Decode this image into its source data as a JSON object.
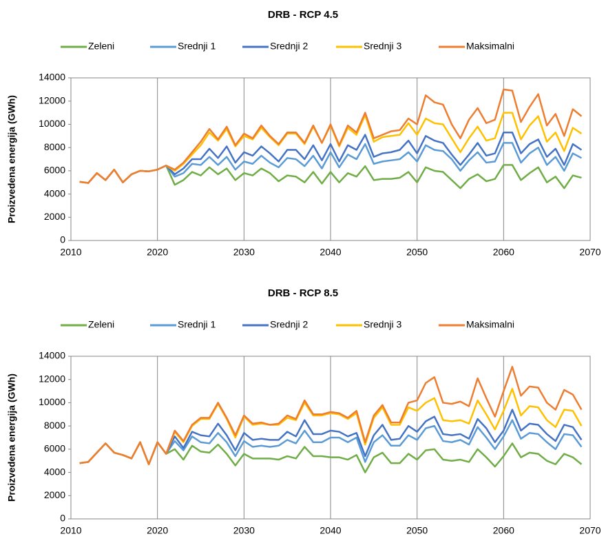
{
  "chart_data": [
    {
      "type": "line",
      "title": "DRB - RCP 4.5",
      "y_label": "Proizvedena energija (GWh)",
      "x": [
        2011,
        2012,
        2013,
        2014,
        2015,
        2016,
        2017,
        2018,
        2019,
        2020,
        2021,
        2022,
        2023,
        2024,
        2025,
        2026,
        2027,
        2028,
        2029,
        2030,
        2031,
        2032,
        2033,
        2034,
        2035,
        2036,
        2037,
        2038,
        2039,
        2040,
        2041,
        2042,
        2043,
        2044,
        2045,
        2046,
        2047,
        2048,
        2049,
        2050,
        2051,
        2052,
        2053,
        2054,
        2055,
        2056,
        2057,
        2058,
        2059,
        2060,
        2061,
        2062,
        2063,
        2064,
        2065,
        2066,
        2067,
        2068,
        2069
      ],
      "xlim": [
        2010,
        2070
      ],
      "xticks": [
        2010,
        2020,
        2030,
        2040,
        2050,
        2060,
        2070
      ],
      "ylim": [
        0,
        14000
      ],
      "yticks": [
        0,
        2000,
        4000,
        6000,
        8000,
        10000,
        12000,
        14000
      ],
      "grid": "x",
      "legend": "top",
      "series": [
        {
          "name": "Zeleni",
          "color": "#70ad47",
          "values": [
            5050,
            4950,
            5800,
            5200,
            6100,
            5000,
            5700,
            6000,
            5950,
            6100,
            6450,
            4800,
            5200,
            5900,
            5600,
            6300,
            5700,
            6200,
            5200,
            5800,
            5600,
            6200,
            5800,
            5100,
            5600,
            5500,
            5000,
            5900,
            4900,
            5900,
            5000,
            5800,
            5500,
            6400,
            5200,
            5300,
            5300,
            5400,
            5900,
            5000,
            6300,
            6000,
            5900,
            5200,
            4500,
            5300,
            5700,
            5100,
            5300,
            6500,
            6500,
            5200,
            5800,
            6300,
            5000,
            5500,
            4500,
            5600,
            5400
          ]
        },
        {
          "name": "Srednji 1",
          "color": "#5b9bd5",
          "values": [
            5050,
            4950,
            5800,
            5200,
            6100,
            5000,
            5700,
            6000,
            5950,
            6100,
            6450,
            5500,
            5800,
            6600,
            6500,
            7200,
            6500,
            7200,
            6100,
            6800,
            6600,
            7300,
            6700,
            6300,
            7100,
            7000,
            6400,
            7300,
            6200,
            7600,
            6300,
            7400,
            7000,
            8300,
            6600,
            6800,
            6900,
            7000,
            7600,
            6800,
            8200,
            7800,
            7700,
            7000,
            6000,
            6900,
            7600,
            6700,
            6800,
            8400,
            8400,
            6700,
            7500,
            8000,
            6500,
            7200,
            6000,
            7500,
            7100
          ]
        },
        {
          "name": "Srednji 2",
          "color": "#4472c4",
          "values": [
            5050,
            4950,
            5800,
            5200,
            6100,
            5000,
            5700,
            6000,
            5950,
            6100,
            6450,
            5700,
            6200,
            7000,
            7000,
            7900,
            7100,
            8100,
            6700,
            7600,
            7300,
            8100,
            7500,
            6800,
            7800,
            7800,
            7000,
            8200,
            6900,
            8300,
            6800,
            8200,
            7800,
            9100,
            7200,
            7500,
            7600,
            7800,
            8600,
            7500,
            9000,
            8600,
            8400,
            7400,
            6500,
            7400,
            8400,
            7300,
            7500,
            9300,
            9300,
            7500,
            8300,
            8700,
            7200,
            7900,
            6500,
            8300,
            7800
          ]
        },
        {
          "name": "Srednji 3",
          "color": "#ffc000",
          "values": [
            5050,
            4950,
            5800,
            5200,
            6100,
            5000,
            5700,
            6000,
            5950,
            6100,
            6450,
            6000,
            6600,
            7400,
            8200,
            9300,
            8600,
            9600,
            8100,
            9000,
            8700,
            9700,
            8900,
            8200,
            9200,
            9200,
            8300,
            9800,
            8400,
            9900,
            8100,
            9700,
            9100,
            10800,
            8500,
            8900,
            9000,
            9100,
            10100,
            9100,
            10500,
            10100,
            10000,
            8800,
            7600,
            8800,
            9800,
            8600,
            8800,
            11000,
            11000,
            8700,
            9900,
            10700,
            8500,
            9300,
            7700,
            9700,
            9200
          ]
        },
        {
          "name": "Maksimalni",
          "color": "#ed7d31",
          "values": [
            5050,
            4950,
            5800,
            5200,
            6100,
            5000,
            5700,
            6000,
            5950,
            6100,
            6450,
            6100,
            6700,
            7600,
            8500,
            9600,
            8700,
            9800,
            8200,
            9200,
            8800,
            9900,
            9000,
            8300,
            9300,
            9300,
            8400,
            9900,
            8400,
            10000,
            8200,
            9900,
            9300,
            11000,
            8800,
            9100,
            9400,
            9500,
            10500,
            10000,
            12500,
            11900,
            11700,
            10000,
            8800,
            10400,
            11400,
            10100,
            10400,
            13000,
            12900,
            10200,
            11500,
            12600,
            9900,
            10900,
            9000,
            11300,
            10700
          ]
        }
      ]
    },
    {
      "type": "line",
      "title": "DRB - RCP 8.5",
      "y_label": "Proizvedena energija (GWh)",
      "x": [
        2011,
        2012,
        2013,
        2014,
        2015,
        2016,
        2017,
        2018,
        2019,
        2020,
        2021,
        2022,
        2023,
        2024,
        2025,
        2026,
        2027,
        2028,
        2029,
        2030,
        2031,
        2032,
        2033,
        2034,
        2035,
        2036,
        2037,
        2038,
        2039,
        2040,
        2041,
        2042,
        2043,
        2044,
        2045,
        2046,
        2047,
        2048,
        2049,
        2050,
        2051,
        2052,
        2053,
        2054,
        2055,
        2056,
        2057,
        2058,
        2059,
        2060,
        2061,
        2062,
        2063,
        2064,
        2065,
        2066,
        2067,
        2068,
        2069
      ],
      "xlim": [
        2010,
        2070
      ],
      "xticks": [
        2010,
        2020,
        2030,
        2040,
        2050,
        2060,
        2070
      ],
      "ylim": [
        0,
        14000
      ],
      "yticks": [
        0,
        2000,
        4000,
        6000,
        8000,
        10000,
        12000,
        14000
      ],
      "grid": "x",
      "legend": "top",
      "series": [
        {
          "name": "Zeleni",
          "color": "#70ad47",
          "values": [
            4800,
            4900,
            5700,
            6500,
            5700,
            5500,
            5200,
            6600,
            4700,
            6600,
            5600,
            6000,
            5100,
            6300,
            5800,
            5700,
            6400,
            5600,
            4600,
            5600,
            5200,
            5200,
            5200,
            5100,
            5400,
            5200,
            6200,
            5400,
            5400,
            5300,
            5300,
            5100,
            5500,
            4000,
            5300,
            5700,
            4800,
            4800,
            5600,
            5100,
            5900,
            6000,
            5100,
            5000,
            5100,
            4900,
            6000,
            5300,
            4500,
            5400,
            6500,
            5300,
            5700,
            5600,
            5000,
            4700,
            5600,
            5300,
            4700
          ]
        },
        {
          "name": "Srednji 1",
          "color": "#5b9bd5",
          "values": [
            4800,
            4900,
            5700,
            6500,
            5700,
            5500,
            5200,
            6600,
            4700,
            6600,
            5600,
            6700,
            5900,
            7100,
            6600,
            6500,
            7400,
            6600,
            5400,
            6700,
            6200,
            6300,
            6200,
            6300,
            6800,
            6500,
            7600,
            6600,
            6600,
            7000,
            7000,
            6600,
            7000,
            4900,
            6600,
            7200,
            6300,
            6300,
            7200,
            6800,
            7800,
            8000,
            6700,
            6600,
            6800,
            6400,
            7900,
            7000,
            6000,
            7100,
            8500,
            6900,
            7400,
            7300,
            6600,
            6000,
            7300,
            7200,
            6200
          ]
        },
        {
          "name": "Srednji 2",
          "color": "#4472c4",
          "values": [
            4800,
            4900,
            5700,
            6500,
            5700,
            5500,
            5200,
            6600,
            4700,
            6600,
            5600,
            7100,
            6100,
            7500,
            7200,
            7100,
            8200,
            7200,
            5900,
            7400,
            6800,
            6900,
            6800,
            6800,
            7500,
            7100,
            8500,
            7300,
            7300,
            7600,
            7500,
            7100,
            7400,
            5400,
            7200,
            8100,
            6800,
            6900,
            8000,
            7500,
            8400,
            8800,
            7300,
            7200,
            7300,
            6900,
            8600,
            7800,
            6600,
            7600,
            9400,
            7600,
            8200,
            8100,
            7300,
            6700,
            8100,
            7900,
            6800
          ]
        },
        {
          "name": "Srednji 3",
          "color": "#ffc000",
          "values": [
            4800,
            4900,
            5700,
            6500,
            5700,
            5500,
            5200,
            6600,
            4700,
            6600,
            5600,
            7500,
            6600,
            8000,
            8600,
            8600,
            9900,
            8600,
            7000,
            8800,
            8100,
            8200,
            8100,
            8100,
            8700,
            8500,
            10000,
            8900,
            8900,
            9100,
            9000,
            8600,
            9100,
            6400,
            8700,
            9600,
            8100,
            8100,
            9600,
            9300,
            10000,
            10400,
            8500,
            8400,
            8500,
            8200,
            10200,
            9000,
            7700,
            9300,
            11200,
            8900,
            9700,
            9600,
            8500,
            7900,
            9400,
            9300,
            8000
          ]
        },
        {
          "name": "Maksimalni",
          "color": "#ed7d31",
          "values": [
            4800,
            4900,
            5700,
            6500,
            5700,
            5500,
            5200,
            6600,
            4700,
            6600,
            5600,
            7600,
            6700,
            8100,
            8700,
            8700,
            10000,
            8700,
            7200,
            8900,
            8200,
            8300,
            8100,
            8200,
            8900,
            8600,
            10200,
            9000,
            9000,
            9200,
            9100,
            8700,
            9300,
            6600,
            8900,
            9800,
            8300,
            8300,
            10000,
            10200,
            11700,
            12200,
            10000,
            9900,
            10100,
            9700,
            12100,
            10400,
            8800,
            11000,
            13100,
            10600,
            11400,
            11300,
            10000,
            9400,
            11100,
            10700,
            9400
          ]
        }
      ]
    }
  ]
}
